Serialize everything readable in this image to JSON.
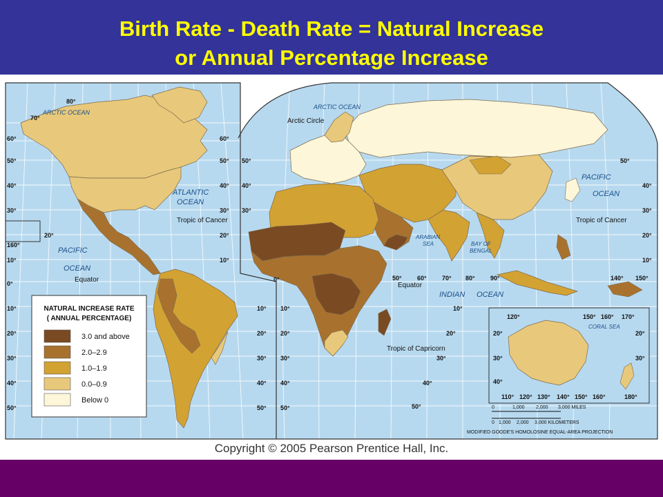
{
  "title": {
    "line1": "Birth Rate - Death Rate = Natural Increase",
    "line2": "or Annual Percentage Increase"
  },
  "colors": {
    "title_bar": "#333399",
    "title_text": "#ffff00",
    "footer_bar": "#660066",
    "ocean": "#b7d9ef",
    "grid": "#ffffff"
  },
  "legend": {
    "title_line1": "NATURAL INCREASE RATE",
    "title_line2": "( ANNUAL PERCENTAGE)",
    "items": [
      {
        "label": "3.0 and above",
        "color": "#7a4a22"
      },
      {
        "label": "2.0–2.9",
        "color": "#a8722e"
      },
      {
        "label": "1.0–1.9",
        "color": "#d2a233"
      },
      {
        "label": "0.0–0.9",
        "color": "#e8c87a"
      },
      {
        "label": "Below 0",
        "color": "#fdf6d8"
      }
    ]
  },
  "map_labels": {
    "arctic_ocean_left": "ARCTIC OCEAN",
    "arctic_ocean_right": "ARCTIC OCEAN",
    "arctic_circle": "Arctic Circle",
    "atlantic_ocean_1": "ATLANTIC",
    "atlantic_ocean_2": "OCEAN",
    "pacific_ocean_left_1": "PACIFIC",
    "pacific_ocean_left_2": "OCEAN",
    "pacific_ocean_right_1": "PACIFIC",
    "pacific_ocean_right_2": "OCEAN",
    "indian_ocean_1": "INDIAN",
    "indian_ocean_2": "OCEAN",
    "arabian_sea_1": "ARABIAN",
    "arabian_sea_2": "SEA",
    "bay_of_bengal_1": "BAY OF",
    "bay_of_bengal_2": "BENGAL",
    "coral_sea": "CORAL SEA",
    "tropic_cancer_left": "Tropic of Cancer",
    "tropic_cancer_right": "Tropic of Cancer",
    "equator_left": "Equator",
    "equator_right": "Equator",
    "tropic_capricorn": "Tropic of Capricorn"
  },
  "degree_labels": {
    "d80": "80°",
    "d70": "70°",
    "d60": "60°",
    "d50": "50°",
    "d40": "40°",
    "d30": "30°",
    "d20": "20°",
    "d10": "10°",
    "d0": "0°",
    "d160": "160°",
    "d90": "90°",
    "d110": "110°",
    "d120": "120°",
    "d130": "130°",
    "d140": "140°",
    "d150": "150°",
    "d170": "170°",
    "d180": "180°"
  },
  "scale": {
    "miles_ticks": [
      "0",
      "1,000",
      "2,000",
      "3,000 MILES"
    ],
    "km_ticks": [
      "0",
      "1,000",
      "2,000",
      "3,000 KILOMETERS"
    ],
    "projection": "MODIFIED GOODE'S HOMOLOSINE EQUAL-AREA PROJECTION"
  },
  "copyright": "Copyright © 2005 Pearson Prentice Hall, Inc."
}
